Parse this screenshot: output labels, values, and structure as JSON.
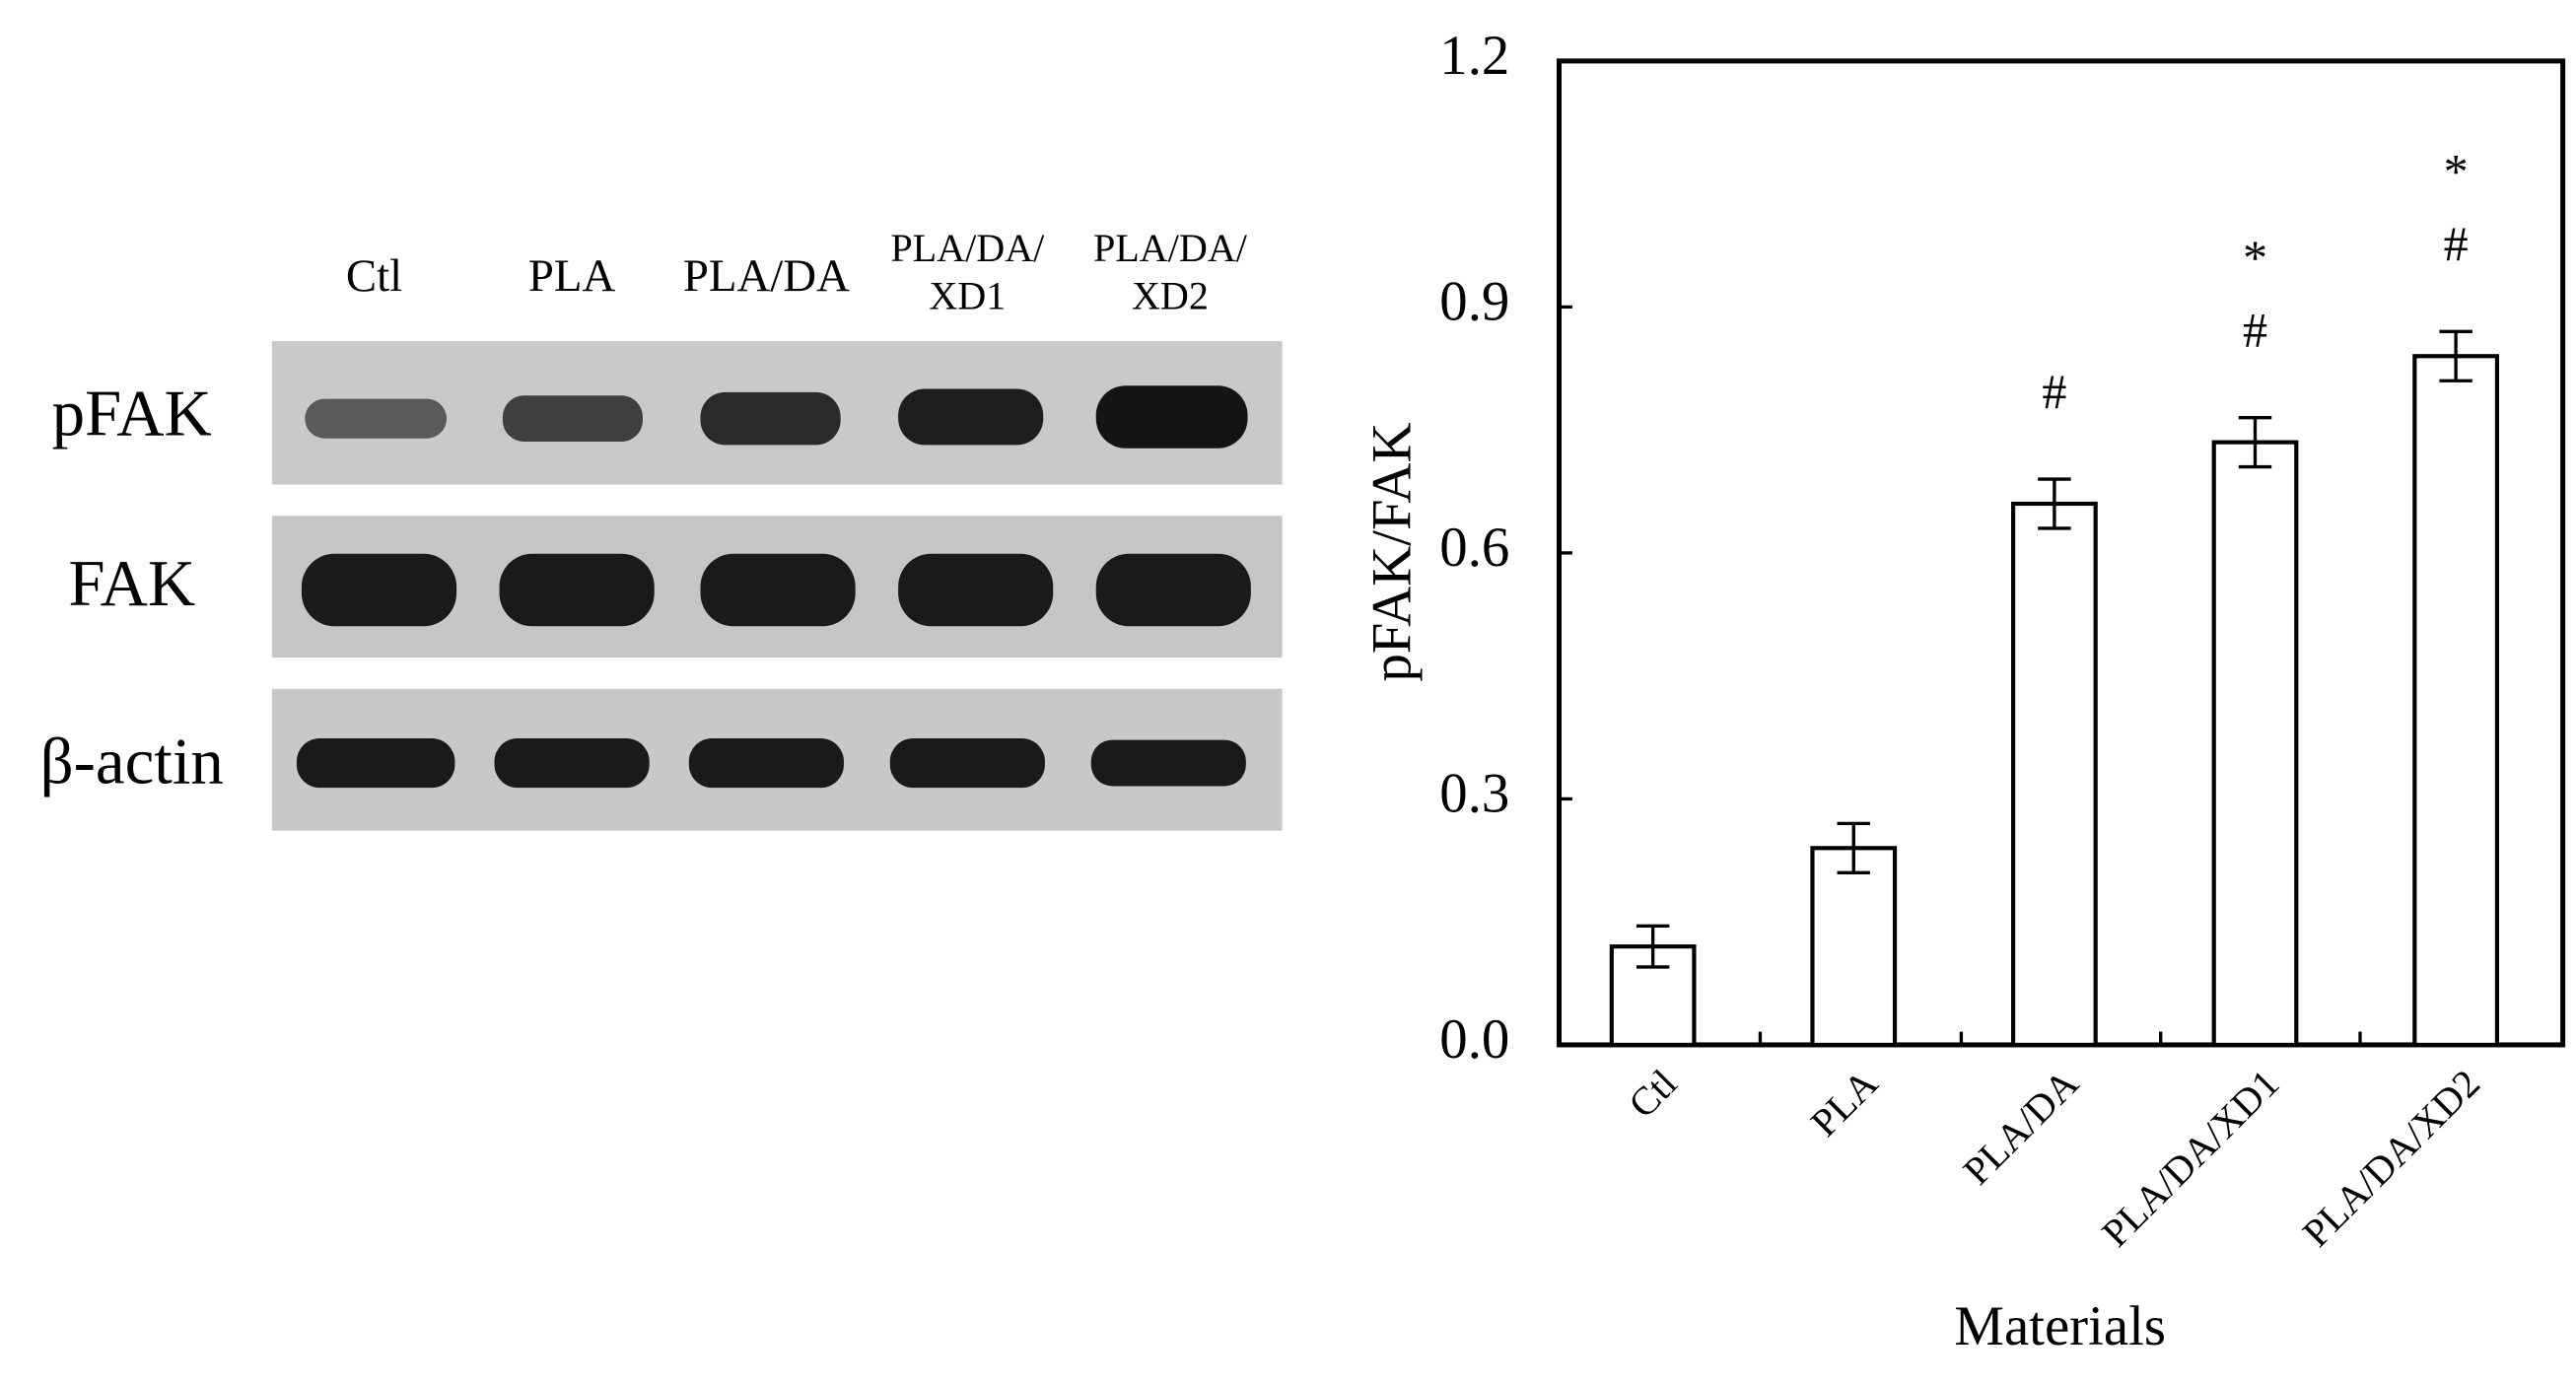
{
  "blot": {
    "lanes": [
      [
        "Ctl"
      ],
      [
        "PLA"
      ],
      [
        "PLA/DA"
      ],
      [
        "PLA/DA/",
        "XD1"
      ],
      [
        "PLA/DA/",
        "XD2"
      ]
    ],
    "rows": [
      "pFAK",
      "FAK",
      "β-actin"
    ]
  },
  "chart_data": {
    "type": "bar",
    "categories": [
      "Ctl",
      "PLA",
      "PLA/DA",
      "PLA/DA/XD1",
      "PLA/DA/XD2"
    ],
    "values": [
      0.12,
      0.24,
      0.66,
      0.735,
      0.84
    ],
    "errors": [
      0.025,
      0.03,
      0.03,
      0.03,
      0.03
    ],
    "significance": [
      null,
      null,
      [
        "#"
      ],
      [
        "*",
        "#"
      ],
      [
        "*",
        "#"
      ]
    ],
    "color": "#ffffff",
    "ylabel": "pFAK/FAK",
    "xlabel": "Materials",
    "ylim": [
      0,
      1.2
    ],
    "yticks": [
      {
        "value": 0,
        "label": "0.0"
      },
      0.3,
      0.6,
      0.9,
      1.2
    ],
    "grid": false
  }
}
